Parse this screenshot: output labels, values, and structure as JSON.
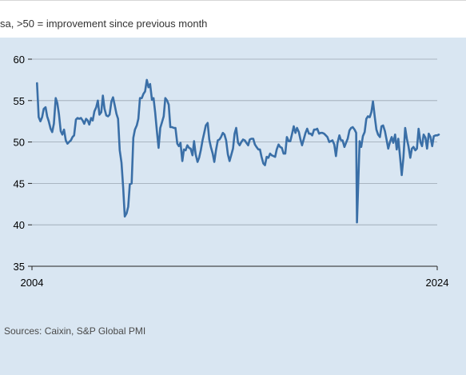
{
  "header": {
    "subtitle": "sa, >50 = improvement since previous month"
  },
  "footer": {
    "source": "Sources: Caixin, S&P Global PMI"
  },
  "colors": {
    "background": "#d9e6f2",
    "line": "#3a6fa7",
    "grid": "#9aa6b2"
  },
  "chart_data": {
    "type": "line",
    "title": "",
    "xlabel": "",
    "ylabel": "",
    "xlim": [
      2004.0,
      2024.0
    ],
    "ylim": [
      35,
      60
    ],
    "y_ticks": [
      35,
      40,
      45,
      50,
      55,
      60
    ],
    "x_tick_labels": [
      "2004",
      "2024"
    ],
    "grid": true,
    "series": [
      {
        "values": [
          [
            2004.25,
            57.1
          ],
          [
            2004.29,
            55.0
          ],
          [
            2004.33,
            53.0
          ],
          [
            2004.42,
            52.5
          ],
          [
            2004.5,
            53.0
          ],
          [
            2004.58,
            54.0
          ],
          [
            2004.67,
            54.2
          ],
          [
            2004.75,
            53.1
          ],
          [
            2004.83,
            52.5
          ],
          [
            2004.92,
            51.6
          ],
          [
            2005.0,
            51.2
          ],
          [
            2005.08,
            52.2
          ],
          [
            2005.17,
            55.3
          ],
          [
            2005.25,
            54.7
          ],
          [
            2005.33,
            53.4
          ],
          [
            2005.42,
            51.3
          ],
          [
            2005.5,
            50.9
          ],
          [
            2005.58,
            51.5
          ],
          [
            2005.67,
            50.2
          ],
          [
            2005.75,
            49.8
          ],
          [
            2005.83,
            50.0
          ],
          [
            2005.92,
            50.2
          ],
          [
            2006.0,
            50.6
          ],
          [
            2006.08,
            50.8
          ],
          [
            2006.17,
            52.7
          ],
          [
            2006.25,
            52.9
          ],
          [
            2006.33,
            52.8
          ],
          [
            2006.42,
            52.9
          ],
          [
            2006.5,
            52.6
          ],
          [
            2006.58,
            52.2
          ],
          [
            2006.67,
            52.8
          ],
          [
            2006.75,
            52.6
          ],
          [
            2006.83,
            52.1
          ],
          [
            2006.92,
            52.9
          ],
          [
            2007.0,
            52.6
          ],
          [
            2007.08,
            53.7
          ],
          [
            2007.17,
            54.2
          ],
          [
            2007.25,
            55.0
          ],
          [
            2007.33,
            53.3
          ],
          [
            2007.42,
            53.6
          ],
          [
            2007.5,
            55.6
          ],
          [
            2007.58,
            54.0
          ],
          [
            2007.67,
            53.2
          ],
          [
            2007.75,
            53.1
          ],
          [
            2007.83,
            53.3
          ],
          [
            2007.92,
            54.9
          ],
          [
            2008.0,
            55.4
          ],
          [
            2008.08,
            54.5
          ],
          [
            2008.17,
            53.4
          ],
          [
            2008.25,
            52.8
          ],
          [
            2008.33,
            49.0
          ],
          [
            2008.42,
            47.5
          ],
          [
            2008.5,
            44.5
          ],
          [
            2008.58,
            41.0
          ],
          [
            2008.67,
            41.4
          ],
          [
            2008.75,
            42.2
          ],
          [
            2008.83,
            44.9
          ],
          [
            2008.92,
            45.0
          ],
          [
            2009.0,
            50.5
          ],
          [
            2009.08,
            51.5
          ],
          [
            2009.17,
            52.0
          ],
          [
            2009.25,
            52.8
          ],
          [
            2009.33,
            55.3
          ],
          [
            2009.42,
            55.3
          ],
          [
            2009.5,
            55.8
          ],
          [
            2009.58,
            56.1
          ],
          [
            2009.67,
            57.5
          ],
          [
            2009.75,
            56.6
          ],
          [
            2009.83,
            57.0
          ],
          [
            2009.92,
            55.1
          ],
          [
            2010.0,
            55.3
          ],
          [
            2010.08,
            53.6
          ],
          [
            2010.17,
            51.2
          ],
          [
            2010.25,
            49.3
          ],
          [
            2010.33,
            51.7
          ],
          [
            2010.42,
            52.4
          ],
          [
            2010.5,
            53.1
          ],
          [
            2010.58,
            55.3
          ],
          [
            2010.67,
            55.0
          ],
          [
            2010.75,
            54.5
          ],
          [
            2010.83,
            51.8
          ],
          [
            2010.92,
            51.8
          ],
          [
            2011.0,
            51.7
          ],
          [
            2011.08,
            51.7
          ],
          [
            2011.17,
            49.8
          ],
          [
            2011.25,
            49.5
          ],
          [
            2011.33,
            49.9
          ],
          [
            2011.42,
            47.7
          ],
          [
            2011.5,
            49.1
          ],
          [
            2011.58,
            49.0
          ],
          [
            2011.67,
            49.6
          ],
          [
            2011.75,
            49.3
          ],
          [
            2011.83,
            49.2
          ],
          [
            2011.92,
            48.4
          ],
          [
            2012.0,
            50.1
          ],
          [
            2012.08,
            48.5
          ],
          [
            2012.17,
            47.6
          ],
          [
            2012.25,
            48.1
          ],
          [
            2012.33,
            49.0
          ],
          [
            2012.42,
            50.2
          ],
          [
            2012.5,
            51.1
          ],
          [
            2012.58,
            52.0
          ],
          [
            2012.67,
            52.3
          ],
          [
            2012.75,
            50.3
          ],
          [
            2012.83,
            49.4
          ],
          [
            2012.92,
            48.6
          ],
          [
            2013.0,
            47.6
          ],
          [
            2013.08,
            49.0
          ],
          [
            2013.17,
            50.2
          ],
          [
            2013.25,
            50.3
          ],
          [
            2013.33,
            50.6
          ],
          [
            2013.42,
            51.1
          ],
          [
            2013.5,
            50.9
          ],
          [
            2013.58,
            50.2
          ],
          [
            2013.67,
            48.5
          ],
          [
            2013.75,
            47.7
          ],
          [
            2013.83,
            48.4
          ],
          [
            2013.92,
            49.2
          ],
          [
            2014.0,
            51.0
          ],
          [
            2014.08,
            51.7
          ],
          [
            2014.17,
            49.9
          ],
          [
            2014.25,
            49.6
          ],
          [
            2014.33,
            50.0
          ],
          [
            2014.42,
            50.3
          ],
          [
            2014.5,
            50.2
          ],
          [
            2014.58,
            49.9
          ],
          [
            2014.67,
            49.6
          ],
          [
            2014.75,
            50.3
          ],
          [
            2014.83,
            50.4
          ],
          [
            2014.92,
            50.4
          ],
          [
            2015.0,
            49.7
          ],
          [
            2015.08,
            49.4
          ],
          [
            2015.17,
            49.1
          ],
          [
            2015.25,
            49.1
          ],
          [
            2015.33,
            48.2
          ],
          [
            2015.42,
            47.4
          ],
          [
            2015.5,
            47.2
          ],
          [
            2015.58,
            48.2
          ],
          [
            2015.67,
            48.1
          ],
          [
            2015.75,
            48.6
          ],
          [
            2015.83,
            48.4
          ],
          [
            2015.92,
            48.3
          ],
          [
            2016.0,
            48.2
          ],
          [
            2016.08,
            49.1
          ],
          [
            2016.17,
            49.7
          ],
          [
            2016.25,
            49.4
          ],
          [
            2016.33,
            49.3
          ],
          [
            2016.42,
            48.6
          ],
          [
            2016.5,
            48.6
          ],
          [
            2016.58,
            50.6
          ],
          [
            2016.67,
            50.1
          ],
          [
            2016.75,
            50.1
          ],
          [
            2016.83,
            50.9
          ],
          [
            2016.92,
            51.9
          ],
          [
            2017.0,
            51.1
          ],
          [
            2017.08,
            51.7
          ],
          [
            2017.17,
            51.2
          ],
          [
            2017.25,
            50.3
          ],
          [
            2017.33,
            49.6
          ],
          [
            2017.42,
            50.4
          ],
          [
            2017.5,
            51.1
          ],
          [
            2017.58,
            51.6
          ],
          [
            2017.67,
            51.0
          ],
          [
            2017.75,
            51.0
          ],
          [
            2017.83,
            50.8
          ],
          [
            2017.92,
            51.5
          ],
          [
            2018.0,
            51.5
          ],
          [
            2018.08,
            51.6
          ],
          [
            2018.17,
            51.0
          ],
          [
            2018.25,
            51.1
          ],
          [
            2018.33,
            51.1
          ],
          [
            2018.42,
            51.0
          ],
          [
            2018.5,
            50.8
          ],
          [
            2018.58,
            50.6
          ],
          [
            2018.67,
            50.0
          ],
          [
            2018.75,
            50.1
          ],
          [
            2018.83,
            50.2
          ],
          [
            2018.92,
            49.7
          ],
          [
            2019.0,
            48.3
          ],
          [
            2019.08,
            49.9
          ],
          [
            2019.17,
            50.8
          ],
          [
            2019.25,
            50.2
          ],
          [
            2019.33,
            50.2
          ],
          [
            2019.42,
            49.4
          ],
          [
            2019.5,
            49.9
          ],
          [
            2019.58,
            50.4
          ],
          [
            2019.67,
            51.4
          ],
          [
            2019.75,
            51.7
          ],
          [
            2019.83,
            51.8
          ],
          [
            2019.92,
            51.5
          ],
          [
            2020.0,
            51.1
          ],
          [
            2020.04,
            40.3
          ],
          [
            2020.17,
            50.1
          ],
          [
            2020.25,
            49.4
          ],
          [
            2020.33,
            50.7
          ],
          [
            2020.42,
            51.2
          ],
          [
            2020.5,
            52.8
          ],
          [
            2020.58,
            53.1
          ],
          [
            2020.67,
            53.0
          ],
          [
            2020.75,
            53.6
          ],
          [
            2020.83,
            54.9
          ],
          [
            2020.92,
            53.0
          ],
          [
            2021.0,
            51.5
          ],
          [
            2021.08,
            50.9
          ],
          [
            2021.17,
            50.6
          ],
          [
            2021.25,
            51.9
          ],
          [
            2021.33,
            52.0
          ],
          [
            2021.42,
            51.3
          ],
          [
            2021.5,
            50.3
          ],
          [
            2021.58,
            49.2
          ],
          [
            2021.67,
            50.0
          ],
          [
            2021.75,
            50.6
          ],
          [
            2021.83,
            49.9
          ],
          [
            2021.92,
            50.9
          ],
          [
            2022.0,
            49.1
          ],
          [
            2022.08,
            50.4
          ],
          [
            2022.17,
            48.1
          ],
          [
            2022.25,
            46.0
          ],
          [
            2022.33,
            48.1
          ],
          [
            2022.42,
            51.7
          ],
          [
            2022.5,
            50.4
          ],
          [
            2022.58,
            49.5
          ],
          [
            2022.67,
            48.1
          ],
          [
            2022.75,
            49.2
          ],
          [
            2022.83,
            49.4
          ],
          [
            2022.92,
            49.0
          ],
          [
            2023.0,
            49.2
          ],
          [
            2023.08,
            51.6
          ],
          [
            2023.17,
            50.0
          ],
          [
            2023.25,
            49.5
          ],
          [
            2023.33,
            50.9
          ],
          [
            2023.42,
            50.5
          ],
          [
            2023.5,
            49.2
          ],
          [
            2023.58,
            51.0
          ],
          [
            2023.67,
            50.6
          ],
          [
            2023.75,
            49.5
          ],
          [
            2023.83,
            50.7
          ],
          [
            2023.92,
            50.8
          ],
          [
            2024.0,
            50.8
          ],
          [
            2024.08,
            50.9
          ]
        ]
      }
    ]
  }
}
